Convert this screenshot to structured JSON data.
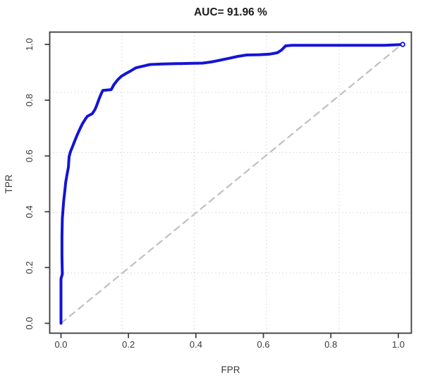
{
  "title": "AUC= 91.96 %",
  "chart_data": {
    "type": "line",
    "title": "AUC= 91.96 %",
    "xlabel": "FPR",
    "ylabel": "TPR",
    "xlim": [
      -0.04,
      1.04
    ],
    "ylim": [
      -0.04,
      1.04
    ],
    "x_ticks": [
      "0.0",
      "0.2",
      "0.4",
      "0.6",
      "0.8",
      "1.0"
    ],
    "y_ticks": [
      "0.0",
      "0.2",
      "0.4",
      "0.6",
      "0.8",
      "1.0"
    ],
    "x_tick_values": [
      0.0,
      0.2,
      0.4,
      0.6,
      0.8,
      1.0
    ],
    "y_tick_values": [
      0.0,
      0.2,
      0.4,
      0.6,
      0.8,
      1.0
    ],
    "grid": {
      "style": "dotted",
      "divisions": 5,
      "color": "#dcdcdc"
    },
    "legend": "none",
    "auc_percent": 91.96,
    "series": [
      {
        "name": "roc-curve",
        "type": "line",
        "color": "#1414d6",
        "stroke_width": 4,
        "end_marker": "open-circle",
        "points": [
          [
            0.0,
            0.0
          ],
          [
            0.0,
            0.16
          ],
          [
            0.004,
            0.176
          ],
          [
            0.003,
            0.24
          ],
          [
            0.003,
            0.31
          ],
          [
            0.004,
            0.375
          ],
          [
            0.008,
            0.438
          ],
          [
            0.012,
            0.481
          ],
          [
            0.014,
            0.506
          ],
          [
            0.018,
            0.534
          ],
          [
            0.022,
            0.559
          ],
          [
            0.024,
            0.597
          ],
          [
            0.028,
            0.615
          ],
          [
            0.034,
            0.633
          ],
          [
            0.042,
            0.658
          ],
          [
            0.049,
            0.678
          ],
          [
            0.055,
            0.694
          ],
          [
            0.063,
            0.714
          ],
          [
            0.072,
            0.732
          ],
          [
            0.078,
            0.742
          ],
          [
            0.093,
            0.752
          ],
          [
            0.101,
            0.767
          ],
          [
            0.107,
            0.785
          ],
          [
            0.113,
            0.805
          ],
          [
            0.12,
            0.825
          ],
          [
            0.124,
            0.835
          ],
          [
            0.149,
            0.838
          ],
          [
            0.157,
            0.856
          ],
          [
            0.168,
            0.873
          ],
          [
            0.179,
            0.886
          ],
          [
            0.193,
            0.896
          ],
          [
            0.208,
            0.906
          ],
          [
            0.222,
            0.916
          ],
          [
            0.243,
            0.922
          ],
          [
            0.264,
            0.928
          ],
          [
            0.3,
            0.93
          ],
          [
            0.34,
            0.931
          ],
          [
            0.38,
            0.932
          ],
          [
            0.42,
            0.933
          ],
          [
            0.445,
            0.937
          ],
          [
            0.47,
            0.943
          ],
          [
            0.497,
            0.95
          ],
          [
            0.524,
            0.957
          ],
          [
            0.55,
            0.962
          ],
          [
            0.588,
            0.963
          ],
          [
            0.618,
            0.965
          ],
          [
            0.641,
            0.97
          ],
          [
            0.654,
            0.98
          ],
          [
            0.666,
            0.995
          ],
          [
            0.685,
            0.997
          ],
          [
            0.96,
            0.997
          ],
          [
            1.0,
            0.999
          ],
          [
            1.013,
            1.0
          ]
        ]
      },
      {
        "name": "chance-diagonal",
        "type": "line",
        "color": "#c0c0c0",
        "stroke_width": 2.2,
        "dash": "9 7",
        "points": [
          [
            0.0,
            0.0
          ],
          [
            1.01,
            1.0
          ]
        ]
      }
    ]
  },
  "colors": {
    "background": "#ffffff",
    "box": "#3a3a3a",
    "tick": "#3a3a3a",
    "grid": "#dcdcdc",
    "roc": "#1414d6",
    "diagonal": "#c0c0c0"
  }
}
